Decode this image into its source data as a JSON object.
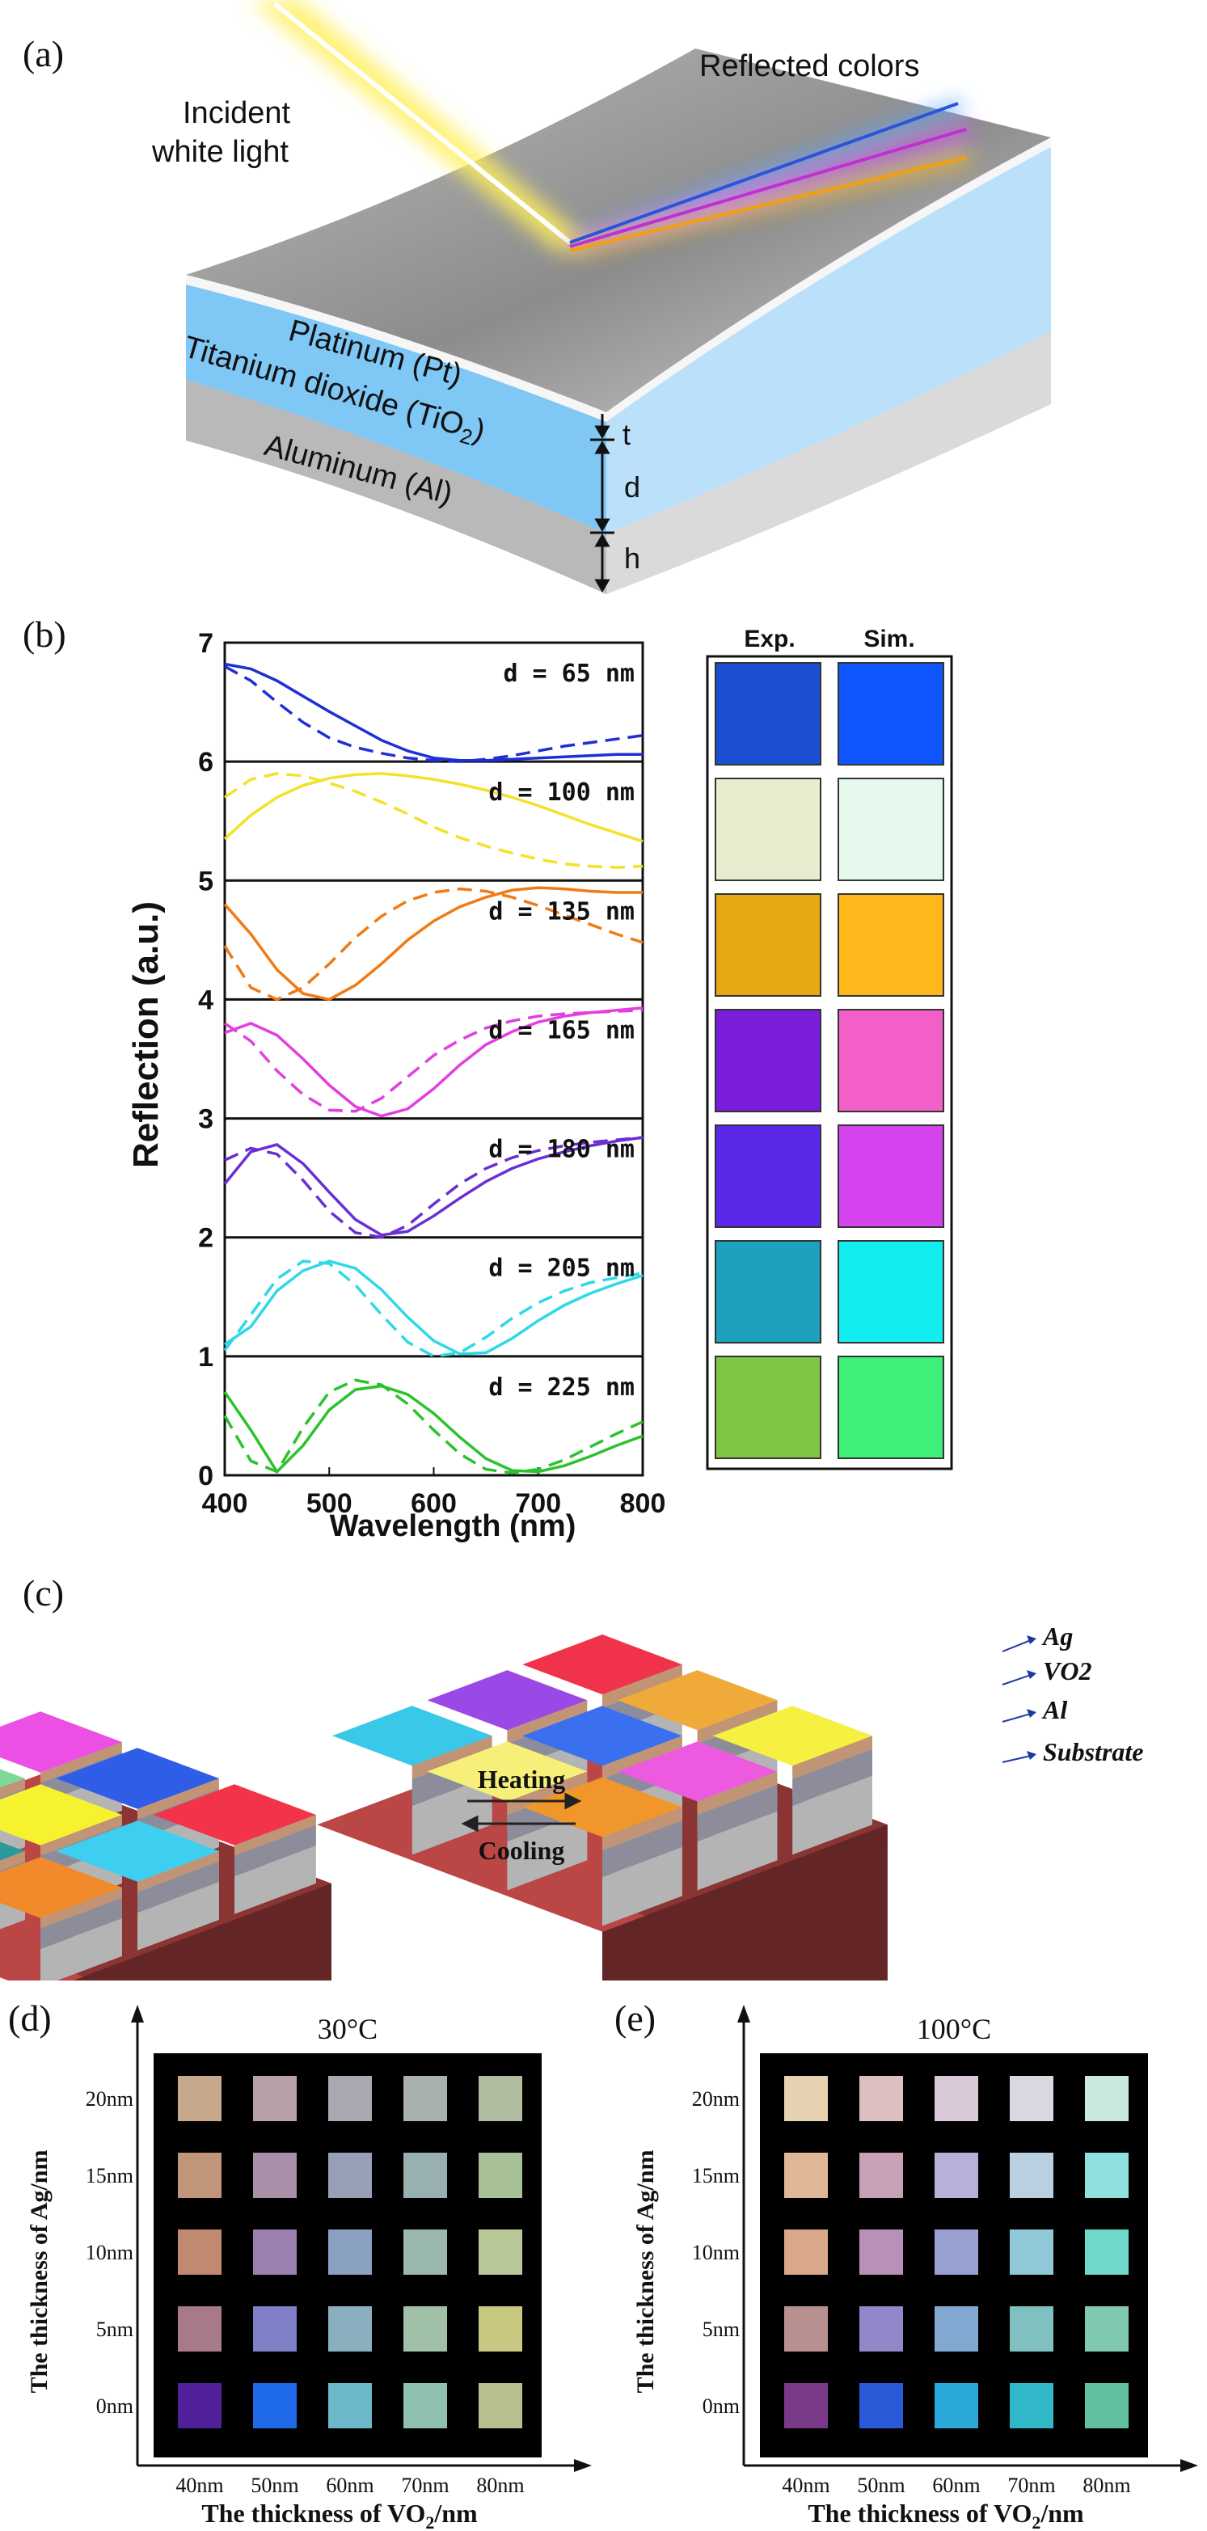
{
  "panel_a": {
    "letter": "(a)",
    "incident_line1": "Incident",
    "incident_line2": "white light",
    "reflected": "Reflected colors",
    "layer_pt": "Platinum (Pt)",
    "layer_tio2_main": "Titanium dioxide (TiO",
    "layer_tio2_sub": "2",
    "layer_tio2_end": ")",
    "layer_al": "Aluminum (Al)",
    "dim_t": "t",
    "dim_d": "d",
    "dim_h": "h",
    "colors": {
      "pt": "#c9c9c9",
      "tio2": "#7fc7f5",
      "al": "#b5b5b5",
      "beam": "#fff27a"
    }
  },
  "panel_b": {
    "letter": "(b)",
    "exp_label": "Exp.",
    "sim_label": "Sim.",
    "swatches": [
      {
        "exp": "#1a4fd1",
        "sim": "#1155ff"
      },
      {
        "exp": "#e9edcf",
        "sim": "#e4f8ec"
      },
      {
        "exp": "#e5a914",
        "sim": "#ffb81c"
      },
      {
        "exp": "#7a1ddb",
        "sim": "#f35fc8"
      },
      {
        "exp": "#5a28e8",
        "sim": "#d543ee"
      },
      {
        "exp": "#1ea0bf",
        "sim": "#12eef0"
      },
      {
        "exp": "#7fc743",
        "sim": "#3ef07a"
      }
    ]
  },
  "chart_data": {
    "type": "line",
    "xlabel": "Wavelength (nm)",
    "ylabel": "Reflection (a.u.)",
    "xlim": [
      400,
      800
    ],
    "ylim": [
      0,
      7
    ],
    "xticks": [
      "400",
      "500",
      "600",
      "700",
      "800"
    ],
    "yticks": [
      "0",
      "1",
      "2",
      "3",
      "4",
      "5",
      "6",
      "7"
    ],
    "x": [
      400,
      425,
      450,
      475,
      500,
      525,
      550,
      575,
      600,
      625,
      650,
      675,
      700,
      725,
      750,
      775,
      800
    ],
    "series": [
      {
        "name": "d = 65 nm",
        "color": "#1f2fd6",
        "measured": [
          6.82,
          6.78,
          6.68,
          6.55,
          6.42,
          6.3,
          6.18,
          6.09,
          6.03,
          6.01,
          6.01,
          6.02,
          6.03,
          6.04,
          6.05,
          6.06,
          6.06
        ],
        "simulated": [
          6.8,
          6.68,
          6.5,
          6.33,
          6.2,
          6.12,
          6.07,
          6.03,
          6.01,
          6.0,
          6.02,
          6.05,
          6.09,
          6.13,
          6.16,
          6.19,
          6.22
        ]
      },
      {
        "name": "d = 100 nm",
        "color": "#f2e22a",
        "measured": [
          5.35,
          5.55,
          5.7,
          5.8,
          5.86,
          5.89,
          5.9,
          5.88,
          5.85,
          5.81,
          5.76,
          5.7,
          5.63,
          5.55,
          5.47,
          5.4,
          5.33
        ],
        "simulated": [
          5.7,
          5.85,
          5.9,
          5.88,
          5.82,
          5.75,
          5.66,
          5.56,
          5.45,
          5.36,
          5.29,
          5.23,
          5.18,
          5.14,
          5.12,
          5.11,
          5.12
        ]
      },
      {
        "name": "d = 135 nm",
        "color": "#f07a14",
        "measured": [
          4.8,
          4.55,
          4.25,
          4.05,
          4.0,
          4.12,
          4.3,
          4.5,
          4.66,
          4.78,
          4.86,
          4.92,
          4.94,
          4.93,
          4.91,
          4.9,
          4.9
        ],
        "simulated": [
          4.45,
          4.1,
          4.0,
          4.1,
          4.3,
          4.52,
          4.7,
          4.83,
          4.9,
          4.93,
          4.91,
          4.86,
          4.79,
          4.71,
          4.63,
          4.55,
          4.48
        ]
      },
      {
        "name": "d = 165 nm",
        "color": "#e23fe0",
        "measured": [
          3.72,
          3.8,
          3.7,
          3.5,
          3.28,
          3.1,
          3.02,
          3.08,
          3.25,
          3.45,
          3.62,
          3.73,
          3.81,
          3.86,
          3.89,
          3.91,
          3.93
        ],
        "simulated": [
          3.8,
          3.65,
          3.4,
          3.2,
          3.07,
          3.06,
          3.17,
          3.35,
          3.53,
          3.66,
          3.76,
          3.82,
          3.86,
          3.88,
          3.89,
          3.9,
          3.91
        ]
      },
      {
        "name": "d = 180 nm",
        "color": "#6a2fd4",
        "measured": [
          2.45,
          2.72,
          2.78,
          2.62,
          2.38,
          2.15,
          2.02,
          2.05,
          2.18,
          2.33,
          2.47,
          2.58,
          2.66,
          2.72,
          2.77,
          2.81,
          2.84
        ],
        "simulated": [
          2.65,
          2.75,
          2.7,
          2.48,
          2.22,
          2.04,
          2.0,
          2.1,
          2.28,
          2.45,
          2.58,
          2.67,
          2.73,
          2.77,
          2.8,
          2.82,
          2.84
        ]
      },
      {
        "name": "d = 205 nm",
        "color": "#2fd8e8",
        "measured": [
          1.1,
          1.25,
          1.55,
          1.72,
          1.8,
          1.74,
          1.56,
          1.33,
          1.13,
          1.02,
          1.03,
          1.15,
          1.3,
          1.43,
          1.53,
          1.61,
          1.68
        ],
        "simulated": [
          1.05,
          1.35,
          1.65,
          1.8,
          1.78,
          1.6,
          1.35,
          1.12,
          1.0,
          1.03,
          1.16,
          1.32,
          1.45,
          1.55,
          1.62,
          1.66,
          1.7
        ]
      },
      {
        "name": "d = 225 nm",
        "color": "#2cc22c",
        "measured": [
          0.7,
          0.38,
          0.03,
          0.25,
          0.55,
          0.72,
          0.75,
          0.68,
          0.52,
          0.32,
          0.14,
          0.04,
          0.03,
          0.08,
          0.16,
          0.25,
          0.33
        ],
        "simulated": [
          0.5,
          0.12,
          0.03,
          0.4,
          0.7,
          0.8,
          0.76,
          0.6,
          0.38,
          0.18,
          0.05,
          0.02,
          0.05,
          0.13,
          0.24,
          0.35,
          0.45
        ]
      }
    ]
  },
  "panel_c": {
    "letter": "(c)",
    "heating": "Heating",
    "cooling": "Cooling",
    "labels": [
      "Ag",
      "VO2",
      "Al",
      "Substrate"
    ],
    "left_tops": [
      "#6f3bd8",
      "#7fd89a",
      "#2a9a9a",
      "#ec4fe4",
      "#f6f230",
      "#f08a2a",
      "#2f5de8",
      "#3ecff0",
      "#f2334a"
    ],
    "right_tops": [
      "#3ac8e8",
      "#9a48e6",
      "#f6f07a",
      "#f0334a",
      "#3a70f0",
      "#f0962a",
      "#f0aa3a",
      "#ec5ae0",
      "#f6f040"
    ],
    "substrate_color": "#8a3434"
  },
  "panel_d": {
    "letter": "(d)",
    "temp": "30°C",
    "ylabel": "The thickness of  Ag/nm",
    "xlabel_main": "The thickness of VO",
    "xlabel_sub": "2",
    "xlabel_end": "/nm",
    "x_ticks": [
      "40nm",
      "50nm",
      "60nm",
      "70nm",
      "80nm"
    ],
    "y_ticks": [
      "20nm",
      "15nm",
      "10nm",
      "5nm",
      "0nm"
    ],
    "grid": [
      [
        "#c8a88a",
        "#b7a0a8",
        "#a9a8b0",
        "#a8b0b0",
        "#b0bca0"
      ],
      [
        "#c0957a",
        "#a890a8",
        "#98a0b8",
        "#98b0b0",
        "#a8c098"
      ],
      [
        "#c08a70",
        "#9a80b0",
        "#8aa0c0",
        "#9ab8b0",
        "#b8c898"
      ],
      [
        "#a87a88",
        "#7f80c8",
        "#8ab0c0",
        "#a0c0a8",
        "#c8c880"
      ],
      [
        "#50209a",
        "#1f6ae8",
        "#6ab8c8",
        "#90c0b0",
        "#b8c090"
      ]
    ]
  },
  "panel_e": {
    "letter": "(e)",
    "temp": "100°C",
    "ylabel": "The thickness of  Ag/nm",
    "xlabel_main": "The thickness of VO",
    "xlabel_sub": "2",
    "xlabel_end": "/nm",
    "x_ticks": [
      "40nm",
      "50nm",
      "60nm",
      "70nm",
      "80nm"
    ],
    "y_ticks": [
      "20nm",
      "15nm",
      "10nm",
      "5nm",
      "0nm"
    ],
    "grid": [
      [
        "#e6d2b0",
        "#dcc0c0",
        "#d8c8d8",
        "#d8d8e0",
        "#c8e8e0"
      ],
      [
        "#e0b898",
        "#c8a0b8",
        "#b8b0d8",
        "#b8d0e0",
        "#90e0e0"
      ],
      [
        "#d8a888",
        "#b890b8",
        "#98a0d0",
        "#90c8d8",
        "#70d8c8"
      ],
      [
        "#b89090",
        "#9088c8",
        "#80a8d0",
        "#80c0c0",
        "#80c8b0"
      ],
      [
        "#7a3a88",
        "#2a5ad8",
        "#2aa8d8",
        "#30b8c8",
        "#60c0a0"
      ]
    ]
  }
}
